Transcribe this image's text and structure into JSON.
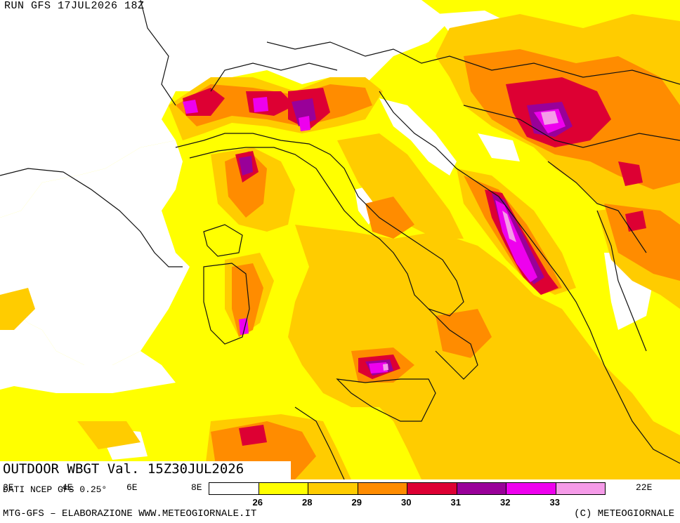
{
  "run_title": "RUN GFS 17JUL2026 18Z",
  "field_title": "OUTDOOR WBGT Val. 15Z30JUL2026",
  "source_note": "DATI NCEP GFS 0.25°",
  "longitude_labels": [
    "2E",
    "4E",
    "6E",
    "8E",
    "22E"
  ],
  "legend": {
    "colors": [
      "#ffffff",
      "#ffff00",
      "#ffcc00",
      "#ff8c00",
      "#dd0033",
      "#990099",
      "#ee00ee",
      "#f59be8"
    ],
    "labels": [
      "26",
      "28",
      "29",
      "30",
      "31",
      "32",
      "33"
    ]
  },
  "footer": {
    "left": "MTG-GFS – ELABORAZIONE WWW.METEOGIORNALE.IT",
    "right": "(C) METEOGIORNALE"
  }
}
